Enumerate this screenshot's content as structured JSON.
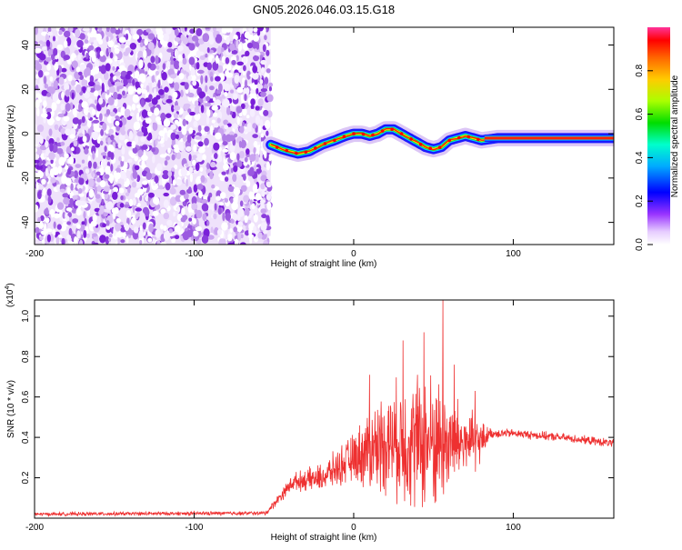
{
  "title": "GN05.2026.046.03.15.G18",
  "chart_data": [
    {
      "type": "heatmap",
      "xlabel": "Height of straight line (km)",
      "ylabel": "Frequency (Hz)",
      "xlim": [
        -200,
        163
      ],
      "ylim": [
        -50,
        48
      ],
      "x_ticks": [
        -200,
        -100,
        0,
        100
      ],
      "x_tick_labels": [
        "-200",
        "-100",
        "0",
        "100"
      ],
      "y_ticks": [
        -40,
        -20,
        0,
        20,
        40
      ],
      "y_tick_labels": [
        "-40",
        "-20",
        "0",
        "20",
        "40"
      ],
      "noise_region_x": [
        -200,
        -52
      ],
      "signal_region_x": [
        -52,
        163
      ],
      "colorbar": {
        "label": "Normalized spectral amplitude",
        "range": [
          0.0,
          1.0
        ],
        "ticks": [
          0.0,
          0.2,
          0.4,
          0.6,
          0.8
        ],
        "tick_labels": [
          "0.0",
          "0.2",
          "0.4",
          "0.6",
          "0.8"
        ]
      },
      "track": {
        "x": [
          -52,
          -45,
          -35,
          -28,
          -20,
          -12,
          -5,
          0,
          5,
          10,
          15,
          20,
          25,
          30,
          35,
          40,
          45,
          50,
          55,
          60,
          65,
          70,
          75,
          80,
          90,
          100,
          110,
          120,
          130,
          140,
          150,
          163
        ],
        "y": [
          -5,
          -7,
          -9,
          -8,
          -5,
          -3,
          -1,
          0,
          0,
          -1,
          0,
          2,
          2,
          0,
          -2,
          -4,
          -6,
          -7,
          -6,
          -3,
          -2,
          -1,
          -2,
          -3,
          -2,
          -2,
          -2,
          -2,
          -2,
          -2,
          -2,
          -2
        ]
      }
    },
    {
      "type": "line",
      "xlabel": "Height of straight line (km)",
      "ylabel": "SNR (10 * v/v)",
      "y_multiplier": "(x10",
      "y_multiplier_exp": "4",
      "y_multiplier_close": ")",
      "xlim": [
        -200,
        163
      ],
      "ylim": [
        0.0,
        1.08
      ],
      "x_ticks": [
        -200,
        -100,
        0,
        100
      ],
      "x_tick_labels": [
        "-200",
        "-100",
        "0",
        "100"
      ],
      "y_ticks": [
        0.2,
        0.4,
        0.6,
        0.8,
        1.0
      ],
      "y_tick_labels": [
        "0.2",
        "0.4",
        "0.6",
        "0.8",
        "1.0"
      ],
      "color": "#ee3030",
      "envelope": {
        "x": [
          -200,
          -55,
          -38,
          -20,
          0,
          10,
          20,
          35,
          45,
          55,
          60,
          70,
          80,
          85,
          100,
          130,
          163
        ],
        "base": [
          0.02,
          0.025,
          0.18,
          0.2,
          0.3,
          0.34,
          0.38,
          0.38,
          0.38,
          0.38,
          0.38,
          0.38,
          0.38,
          0.42,
          0.42,
          0.4,
          0.37
        ],
        "amp": [
          0.01,
          0.012,
          0.05,
          0.08,
          0.14,
          0.25,
          0.3,
          0.38,
          0.42,
          0.38,
          0.3,
          0.2,
          0.12,
          0.03,
          0.025,
          0.025,
          0.025
        ]
      },
      "peaks": [
        {
          "x": 10,
          "y": 0.71
        },
        {
          "x": 31,
          "y": 0.88
        },
        {
          "x": 44,
          "y": 0.92
        },
        {
          "x": 56,
          "y": 1.08
        },
        {
          "x": 63,
          "y": 0.76
        },
        {
          "x": 76,
          "y": 0.63
        }
      ]
    }
  ]
}
